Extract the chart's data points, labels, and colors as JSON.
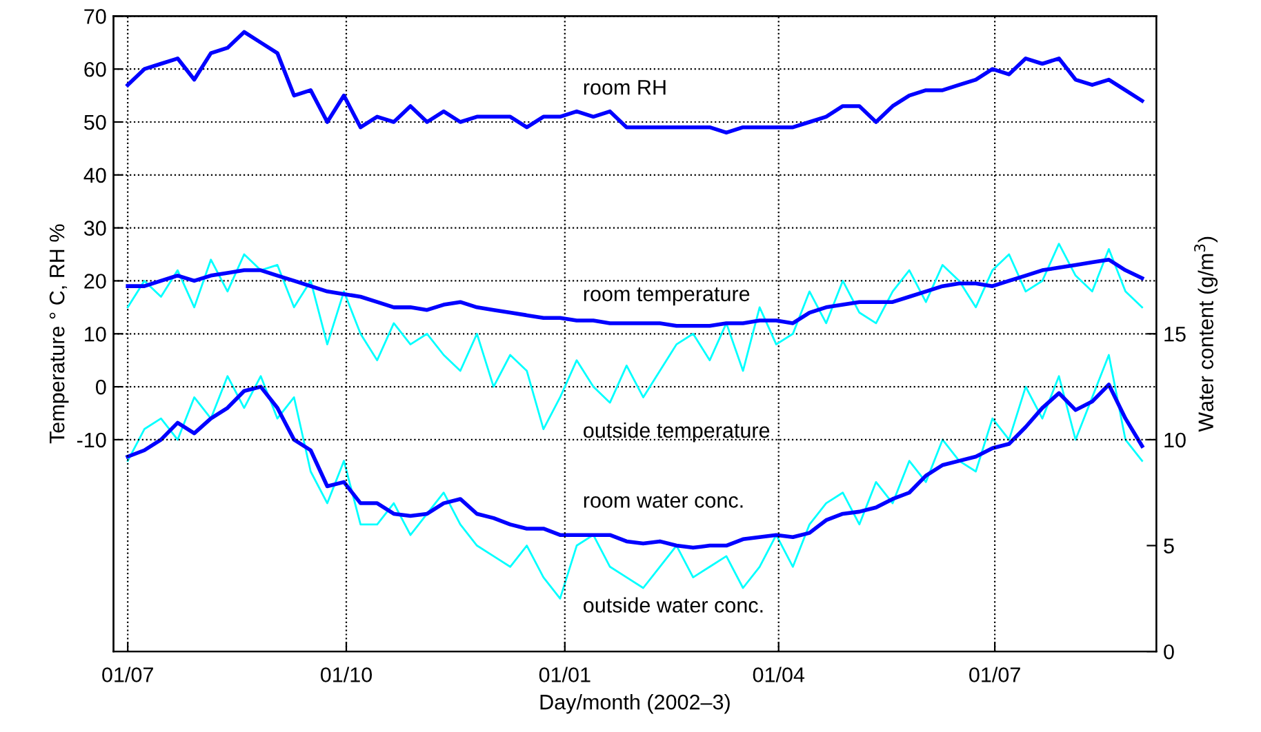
{
  "chart_data": {
    "type": "line",
    "xlabel": "Day/month (2002–3)",
    "ylabel": "Temperature ° C, RH %",
    "y2label": "Water content (g/m$^{3}$)",
    "x": [
      "2002-07-01",
      "2002-07-08",
      "2002-07-15",
      "2002-07-22",
      "2002-07-29",
      "2002-08-05",
      "2002-08-12",
      "2002-08-19",
      "2002-08-26",
      "2002-09-02",
      "2002-09-09",
      "2002-09-16",
      "2002-09-23",
      "2002-09-30",
      "2002-10-07",
      "2002-10-14",
      "2002-10-21",
      "2002-10-28",
      "2002-11-04",
      "2002-11-11",
      "2002-11-18",
      "2002-11-25",
      "2002-12-02",
      "2002-12-09",
      "2002-12-16",
      "2002-12-23",
      "2002-12-30",
      "2003-01-06",
      "2003-01-13",
      "2003-01-20",
      "2003-01-27",
      "2003-02-03",
      "2003-02-10",
      "2003-02-17",
      "2003-02-24",
      "2003-03-03",
      "2003-03-10",
      "2003-03-17",
      "2003-03-24",
      "2003-03-31",
      "2003-04-07",
      "2003-04-14",
      "2003-04-21",
      "2003-04-28",
      "2003-05-05",
      "2003-05-12",
      "2003-05-19",
      "2003-05-26",
      "2003-06-02",
      "2003-06-09",
      "2003-06-16",
      "2003-06-23",
      "2003-06-30",
      "2003-07-07",
      "2003-07-14",
      "2003-07-21",
      "2003-07-28",
      "2003-08-04",
      "2003-08-11",
      "2003-08-18",
      "2003-08-25",
      "2003-09-01"
    ],
    "series": [
      {
        "name": "room RH",
        "color": "#0000ff",
        "values": [
          57,
          60,
          61,
          62,
          58,
          63,
          64,
          67,
          65,
          63,
          55,
          56,
          50,
          55,
          49,
          51,
          50,
          53,
          50,
          52,
          50,
          51,
          51,
          51,
          49,
          51,
          51,
          52,
          51,
          52,
          49,
          49,
          49,
          49,
          49,
          49,
          48,
          49,
          49,
          49,
          49,
          50,
          51,
          53,
          53,
          50,
          53,
          55,
          56,
          56,
          57,
          58,
          60,
          59,
          62,
          61,
          62,
          58,
          57,
          58,
          56,
          54
        ]
      },
      {
        "name": "outside temperature",
        "color": "#00ffff",
        "values": [
          15,
          20,
          17,
          22,
          15,
          24,
          18,
          25,
          22,
          23,
          15,
          20,
          8,
          18,
          10,
          5,
          12,
          8,
          10,
          6,
          3,
          10,
          0,
          6,
          3,
          -8,
          -2,
          5,
          0,
          -3,
          4,
          -2,
          3,
          8,
          10,
          5,
          12,
          3,
          15,
          8,
          10,
          18,
          12,
          20,
          14,
          12,
          18,
          22,
          16,
          23,
          20,
          15,
          22,
          25,
          18,
          20,
          27,
          21,
          18,
          26,
          18,
          15
        ]
      },
      {
        "name": "room temperature",
        "color": "#0000ff",
        "values": [
          19,
          19,
          20,
          21,
          20,
          21,
          21.5,
          22,
          22,
          21,
          20,
          19,
          18,
          17.5,
          17,
          16,
          15,
          15,
          14.5,
          15.5,
          16,
          15,
          14.5,
          14,
          13.5,
          13,
          13,
          12.5,
          12.5,
          12,
          12,
          12,
          12,
          11.5,
          11.5,
          11.5,
          12,
          12,
          12.5,
          12.5,
          12,
          14,
          15,
          15.5,
          16,
          16,
          16,
          17,
          18,
          19,
          19.5,
          19.5,
          19,
          20,
          21,
          22,
          22.5,
          23,
          23.5,
          24,
          22,
          20.5
        ]
      },
      {
        "name": "outside water conc.",
        "color": "#00ffff",
        "axis": "y2",
        "values": [
          9,
          10.5,
          11,
          10,
          12,
          11,
          13,
          11.5,
          13,
          11,
          12,
          8.5,
          7,
          9,
          6,
          6,
          7,
          5.5,
          6.5,
          7.5,
          6,
          5,
          4.5,
          4,
          5,
          3.5,
          2.5,
          5,
          5.5,
          4,
          3.5,
          3,
          4,
          5,
          3.5,
          4,
          4.5,
          3,
          4,
          5.5,
          4,
          6,
          7,
          7.5,
          6,
          8,
          7,
          9,
          8,
          10,
          9,
          8.5,
          11,
          10,
          12.5,
          11,
          13,
          10,
          12,
          14,
          10,
          9
        ]
      },
      {
        "name": "room water conc.",
        "color": "#0000ff",
        "axis": "y2",
        "values": [
          9.2,
          9.5,
          10,
          10.8,
          10.3,
          11,
          11.5,
          12.3,
          12.5,
          11.5,
          10,
          9.5,
          7.8,
          8,
          7,
          7,
          6.5,
          6.4,
          6.5,
          7,
          7.2,
          6.5,
          6.3,
          6,
          5.8,
          5.8,
          5.5,
          5.5,
          5.5,
          5.5,
          5.2,
          5.1,
          5.2,
          5,
          4.9,
          5,
          5,
          5.3,
          5.4,
          5.5,
          5.4,
          5.6,
          6.2,
          6.5,
          6.6,
          6.8,
          7.2,
          7.5,
          8.3,
          8.8,
          9,
          9.2,
          9.6,
          9.8,
          10.6,
          11.5,
          12.2,
          11.4,
          11.8,
          12.6,
          11,
          9.7
        ]
      }
    ],
    "xlim": [
      "2002-06-25",
      "2003-09-07"
    ],
    "xticks": [
      {
        "value": "2002-07-01",
        "label": "01/07"
      },
      {
        "value": "2002-10-01",
        "label": "01/10"
      },
      {
        "value": "2003-01-01",
        "label": "01/01"
      },
      {
        "value": "2003-04-01",
        "label": "01/04"
      },
      {
        "value": "2003-07-01",
        "label": "01/07"
      }
    ],
    "ylim": [
      -50,
      70
    ],
    "yticks": [
      -10,
      0,
      10,
      20,
      30,
      40,
      50,
      60,
      70
    ],
    "y2lim": [
      0,
      30
    ],
    "y2ticks": [
      0,
      5,
      10,
      15
    ],
    "grid": true,
    "legend": false,
    "line_style": "solid",
    "marker": "none"
  }
}
